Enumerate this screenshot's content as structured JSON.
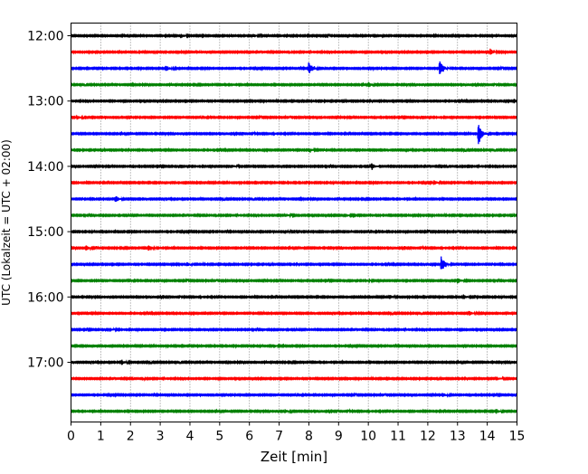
{
  "chart_data": {
    "type": "line",
    "title": "",
    "xlabel": "Zeit  [min]",
    "ylabel": "UTC (Lokalzeit = UTC + 02:00)",
    "xlim": [
      0,
      15
    ],
    "x_ticks": [
      0,
      1,
      2,
      3,
      4,
      5,
      6,
      7,
      8,
      9,
      10,
      11,
      12,
      13,
      14,
      15
    ],
    "x_tick_labels": [
      "0",
      "1",
      "2",
      "3",
      "4",
      "5",
      "6",
      "7",
      "8",
      "9",
      "10",
      "11",
      "12",
      "13",
      "14",
      "15"
    ],
    "y_tick_labels": [
      "12:00",
      "13:00",
      "14:00",
      "15:00",
      "16:00",
      "17:00"
    ],
    "trace_interval_min": 15,
    "grid": "vertical dotted",
    "color_cycle": [
      "#000000",
      "#ff0000",
      "#0000ff",
      "#008000"
    ],
    "traces": [
      {
        "start": "12:00",
        "color": "#000000",
        "events": [
          [
            3.7,
            0.35
          ],
          [
            6.1,
            0.35
          ]
        ]
      },
      {
        "start": "12:15",
        "color": "#ff0000",
        "events": [
          [
            14.1,
            0.45
          ]
        ]
      },
      {
        "start": "12:30",
        "color": "#0000ff",
        "events": [
          [
            3.2,
            0.5
          ],
          [
            8.0,
            1.1
          ],
          [
            12.4,
            1.4
          ]
        ]
      },
      {
        "start": "12:45",
        "color": "#008000",
        "events": [
          [
            10.0,
            0.4
          ]
        ]
      },
      {
        "start": "13:00",
        "color": "#000000",
        "events": [
          [
            14.9,
            0.4
          ]
        ]
      },
      {
        "start": "13:15",
        "color": "#ff0000",
        "events": [
          [
            0.2,
            0.3
          ]
        ]
      },
      {
        "start": "13:30",
        "color": "#0000ff",
        "events": [
          [
            13.7,
            2.0
          ]
        ]
      },
      {
        "start": "13:45",
        "color": "#008000",
        "events": [
          [
            8.0,
            0.35
          ]
        ]
      },
      {
        "start": "14:00",
        "color": "#000000",
        "events": [
          [
            10.1,
            0.45
          ],
          [
            5.4,
            0.3
          ]
        ]
      },
      {
        "start": "14:15",
        "color": "#ff0000",
        "events": [
          [
            12.2,
            0.35
          ]
        ]
      },
      {
        "start": "14:30",
        "color": "#0000ff",
        "events": [
          [
            1.5,
            0.5
          ]
        ]
      },
      {
        "start": "14:45",
        "color": "#008000",
        "events": [
          [
            7.2,
            0.35
          ],
          [
            9.2,
            0.35
          ]
        ]
      },
      {
        "start": "15:00",
        "color": "#000000",
        "events": [
          [
            7.2,
            0.3
          ]
        ]
      },
      {
        "start": "15:15",
        "color": "#ff0000",
        "events": [
          [
            0.5,
            0.4
          ],
          [
            2.6,
            0.55
          ]
        ]
      },
      {
        "start": "15:30",
        "color": "#0000ff",
        "events": [
          [
            12.45,
            1.4
          ],
          [
            3.9,
            0.3
          ]
        ]
      },
      {
        "start": "15:45",
        "color": "#008000",
        "events": [
          [
            13.0,
            0.45
          ],
          [
            9.9,
            0.3
          ]
        ]
      },
      {
        "start": "16:00",
        "color": "#000000",
        "events": [
          [
            10.7,
            0.35
          ],
          [
            13.2,
            0.35
          ]
        ]
      },
      {
        "start": "16:15",
        "color": "#ff0000",
        "events": [
          [
            13.4,
            0.3
          ]
        ]
      },
      {
        "start": "16:30",
        "color": "#0000ff",
        "events": [
          [
            1.3,
            0.3
          ]
        ]
      },
      {
        "start": "16:45",
        "color": "#008000",
        "events": [
          [
            6.8,
            0.3
          ]
        ]
      },
      {
        "start": "17:00",
        "color": "#000000",
        "events": [
          [
            1.7,
            0.4
          ]
        ]
      },
      {
        "start": "17:15",
        "color": "#ff0000",
        "events": [
          [
            14.3,
            0.3
          ]
        ]
      },
      {
        "start": "17:30",
        "color": "#0000ff",
        "events": [
          [
            12.5,
            0.3
          ]
        ]
      },
      {
        "start": "17:45",
        "color": "#008000",
        "events": [
          [
            7.2,
            0.3
          ],
          [
            14.3,
            0.35
          ]
        ]
      }
    ]
  }
}
